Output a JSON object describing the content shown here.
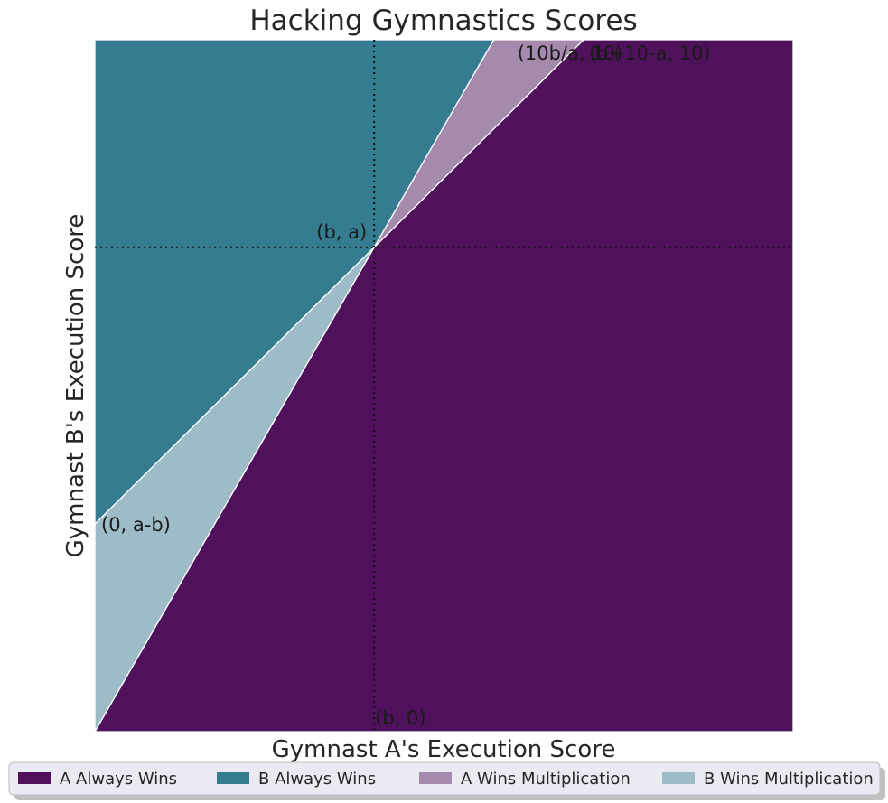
{
  "chart_data": {
    "type": "area",
    "title": "Hacking Gymnastics Scores",
    "xlabel": "Gymnast A's Execution Score",
    "ylabel": "Gymnast B's Execution Score",
    "xlim": [
      0,
      10
    ],
    "ylim": [
      0,
      10
    ],
    "grid": false,
    "legend_placement": "bottom",
    "parameters": {
      "a": 7,
      "b": 4
    },
    "regions": [
      {
        "name": "A Always Wins",
        "color": "#4f115b",
        "polygon": [
          [
            0,
            0
          ],
          [
            4,
            7
          ],
          [
            7,
            10
          ],
          [
            10,
            10
          ],
          [
            10,
            0
          ]
        ]
      },
      {
        "name": "B Always Wins",
        "color": "#367c91",
        "polygon": [
          [
            0,
            3
          ],
          [
            4,
            7
          ],
          [
            5.714,
            10
          ],
          [
            0,
            10
          ]
        ]
      },
      {
        "name": "A Wins Multiplication",
        "color": "#a58aae",
        "polygon": [
          [
            4,
            7
          ],
          [
            5.714,
            10
          ],
          [
            7,
            10
          ]
        ]
      },
      {
        "name": "B Wins Multiplication",
        "color": "#9ebbc8",
        "polygon": [
          [
            0,
            0
          ],
          [
            4,
            7
          ],
          [
            0,
            3
          ]
        ]
      }
    ],
    "reference_lines": {
      "vertical_x": 4,
      "horizontal_y": 7,
      "style": "dotted"
    },
    "annotations": [
      {
        "text": "(10b/a, 10)",
        "x": 5.714,
        "y": 10,
        "anchor": "start"
      },
      {
        "text": "(b+10-a, 10)",
        "x": 7,
        "y": 10,
        "anchor": "start"
      },
      {
        "text": "(b, a)",
        "x": 4,
        "y": 7,
        "anchor": "end"
      },
      {
        "text": "(0, a-b)",
        "x": 0,
        "y": 3,
        "anchor": "start"
      },
      {
        "text": "(b, 0)",
        "x": 4,
        "y": 0,
        "anchor": "start"
      }
    ]
  }
}
